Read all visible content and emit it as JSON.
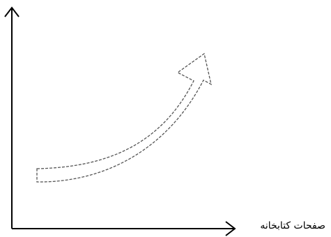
{
  "diagram": {
    "x_axis_label": "صفحات کتابخانه",
    "arrow_style": "dashed-outline",
    "colors": {
      "axis": "#000000",
      "arrow_outline": "#555555",
      "background": "#ffffff"
    }
  }
}
